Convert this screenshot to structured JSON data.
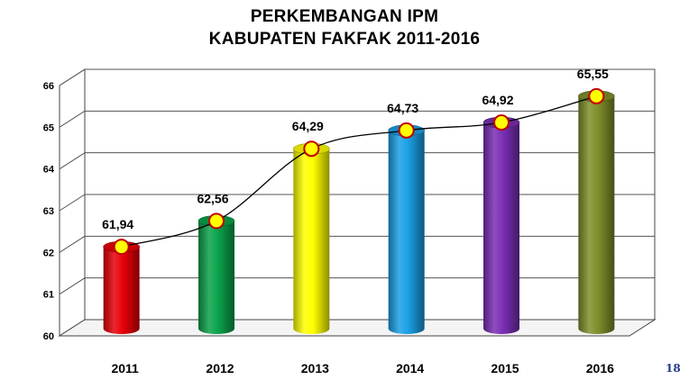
{
  "chart_data": {
    "type": "bar",
    "title_line1": "PERKEMBANGAN IPM",
    "title_line2": "KABUPATEN FAKFAK 2011-2016",
    "categories": [
      "2011",
      "2012",
      "2013",
      "2014",
      "2015",
      "2016"
    ],
    "values": [
      61.94,
      62.56,
      64.29,
      64.73,
      64.92,
      65.55
    ],
    "value_labels": [
      "61,94",
      "62,56",
      "64,29",
      "64,73",
      "64,92",
      "65,55"
    ],
    "ylim": [
      60,
      66
    ],
    "yticks": [
      "60",
      "61",
      "62",
      "63",
      "64",
      "65",
      "66"
    ],
    "grid": true,
    "style": "3d-cylinder",
    "overlay_line": "smoothed line through the same values with circular markers",
    "bar_colors": [
      "#e8000a",
      "#0aa34a",
      "#ffff00",
      "#1aa0e6",
      "#7a2fb4",
      "#7f8f2a"
    ]
  },
  "colors": {
    "marker_fill": "#ffff00",
    "marker_stroke": "#c00000",
    "trend_line": "#000000"
  },
  "page_number": "18"
}
